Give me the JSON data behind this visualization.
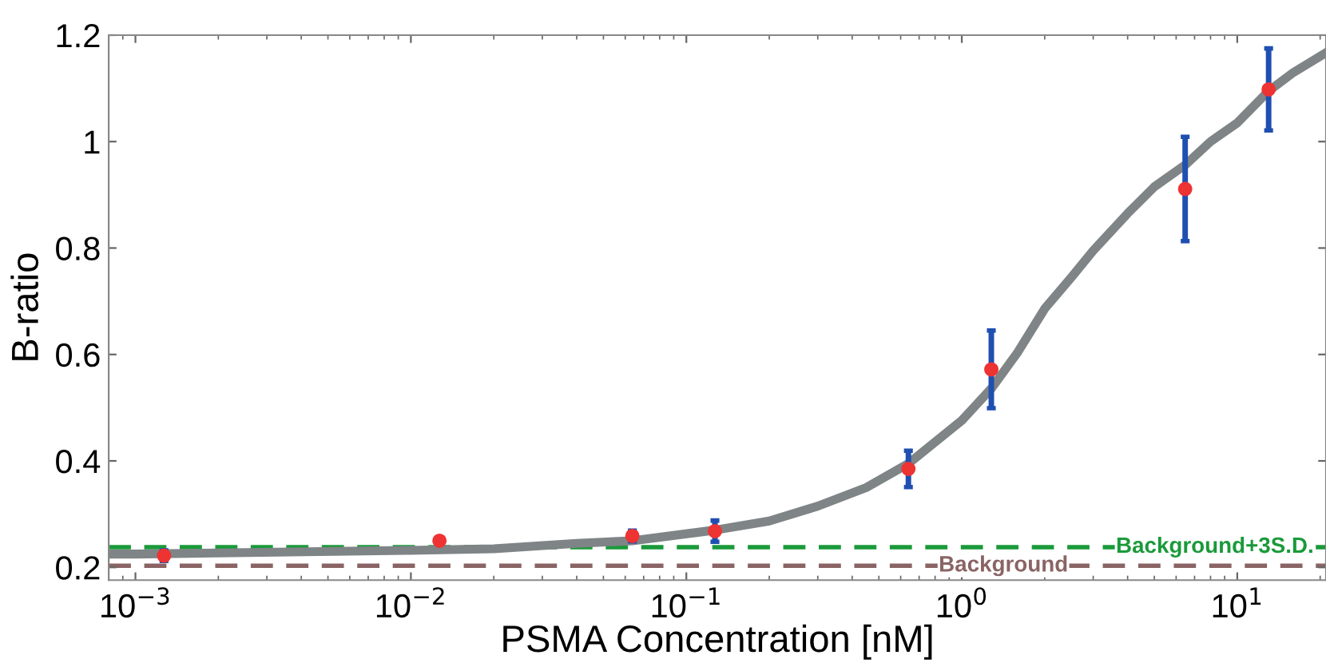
{
  "chart_data": {
    "type": "scatter",
    "xlabel": "PSMA Concentration [nM]",
    "ylabel": "B-ratio",
    "log": "x",
    "xlim": [
      0.0008,
      21
    ],
    "ylim": [
      0.176,
      1.2
    ],
    "xticks": [
      {
        "value": 0.001,
        "label": "10$^{−3}$"
      },
      {
        "value": 0.01,
        "label": "10$^{−2}$"
      },
      {
        "value": 0.1,
        "label": "10$^{−1}$"
      },
      {
        "value": 1,
        "label": "10$^{0}$"
      },
      {
        "value": 10,
        "label": "10$^{1}$"
      }
    ],
    "yticks": [
      0.2,
      0.4,
      0.6,
      0.8,
      1,
      1.2
    ],
    "grid": false,
    "series": [
      {
        "type": "line",
        "color": "#7f8486",
        "x": [
          0.0008,
          0.001,
          0.01,
          0.02,
          0.04,
          0.0637,
          0.127,
          0.2,
          0.3,
          0.45,
          0.64,
          1.0,
          1.28,
          1.6,
          2,
          2.5,
          3,
          4,
          5,
          6.47,
          8,
          10,
          13,
          16,
          21
        ],
        "values": [
          0.225,
          0.225,
          0.232,
          0.235,
          0.245,
          0.25,
          0.27,
          0.287,
          0.315,
          0.35,
          0.395,
          0.476,
          0.536,
          0.605,
          0.686,
          0.745,
          0.795,
          0.865,
          0.915,
          0.956,
          1.0,
          1.035,
          1.095,
          1.13,
          1.167
        ],
        "line_style": "solid",
        "marker": "none"
      },
      {
        "color": "#ee3333",
        "marker": "circle",
        "x": [
          0.00127,
          0.0127,
          0.0637,
          0.127,
          0.64,
          1.28,
          6.47,
          13.0
        ],
        "values": [
          0.222,
          0.25,
          0.259,
          0.268,
          0.385,
          0.572,
          0.911,
          1.098
        ],
        "errors": [
          0.01,
          null,
          0.01,
          0.02,
          0.034,
          0.073,
          0.098,
          0.077
        ]
      }
    ],
    "ref_lines": [
      {
        "axis": "y",
        "value": 0.238,
        "label": "Background+3S.D.",
        "color": "#1a9a3a",
        "line_style": "dashed"
      },
      {
        "axis": "y",
        "value": 0.203,
        "label": "Background",
        "color": "#8a6464",
        "line_style": "dashed"
      }
    ]
  }
}
